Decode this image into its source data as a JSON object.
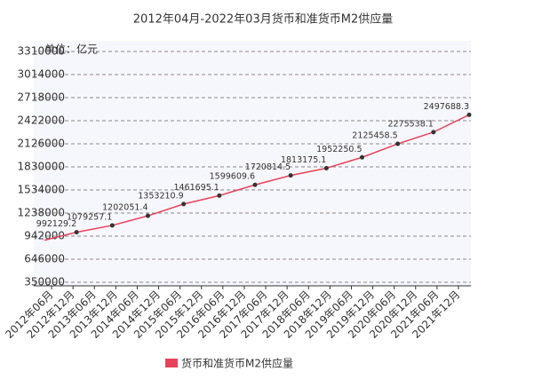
{
  "chart_data": {
    "type": "line",
    "title": "2012年04月-2022年03月货币和准货币M2供应量",
    "unit_label": "单位：亿元",
    "categories": [
      "2012年06月",
      "2012年12月",
      "2013年06月",
      "2013年12月",
      "2014年06月",
      "2014年12月",
      "2015年06月",
      "2015年12月",
      "2016年06月",
      "2016年12月",
      "2017年06月",
      "2017年12月",
      "2018年06月",
      "2018年12月",
      "2019年06月",
      "2019年12月",
      "2020年06月",
      "2020年12月",
      "2021年06月",
      "2021年12月"
    ],
    "xlim": [
      "2012年04月",
      "2022年03月"
    ],
    "ylim": [
      350000,
      3310000
    ],
    "yticks": [
      350000,
      646000,
      942000,
      1238000,
      1534000,
      1830000,
      2126000,
      2422000,
      2718000,
      3014000,
      3310000
    ],
    "grid": true,
    "legend": "bottom",
    "series": [
      {
        "name": "货币和准货币M2供应量",
        "color": "#e8435a",
        "x": [
          "2012年04月",
          "2013年01月",
          "2013年11月",
          "2014年09月",
          "2015年07月",
          "2016年05月",
          "2017年03月",
          "2018年01月",
          "2018年11月",
          "2019年09月",
          "2020年07月",
          "2021年05月",
          "2022年03月"
        ],
        "values": [
          889604,
          992129.2,
          1079257.1,
          1202051.4,
          1353210.9,
          1461695.1,
          1599609.6,
          1720814.5,
          1813175.1,
          1952250.5,
          2125458.5,
          2275538.1,
          2497688.3
        ],
        "value_labels": [
          null,
          "992129.2",
          "1079257.1",
          "1202051.4",
          "1353210.9",
          "1461695.1",
          "1599609.6",
          "1720814.5",
          "1813175.1",
          "1952250.5",
          "2125458.5",
          "2275538.1",
          "2497688.3"
        ]
      }
    ]
  }
}
